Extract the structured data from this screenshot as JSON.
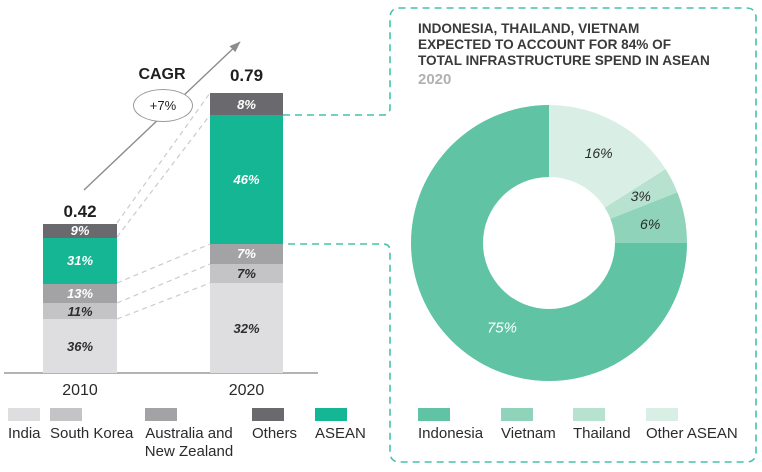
{
  "colors": {
    "india": "#dedee0",
    "south_korea": "#c4c4c6",
    "australia_nz": "#a3a3a6",
    "others": "#6a6a6e",
    "asean": "#14b694",
    "indonesia": "#5fc3a4",
    "vietnam": "#8fd3ba",
    "thailand": "#b7e2d0",
    "other_asean": "#d9efe5",
    "callout_border": "#45c4a8",
    "connector_gray": "#cbcbcb",
    "arrow_gray": "#8c8c8c",
    "axis_gray": "#9a9a9a"
  },
  "panel": {
    "title_lines": [
      "INDONESIA, THAILAND, VIETNAM",
      "EXPECTED TO ACCOUNT FOR 84% OF",
      "TOTAL INFRASTRUCTURE SPEND IN ASEAN"
    ],
    "subtitle": "2020"
  },
  "chart_data": [
    {
      "type": "bar",
      "subtype": "stacked-percent",
      "categories": [
        "2010",
        "2020"
      ],
      "totals": [
        0.42,
        0.79
      ],
      "annotations": {
        "cagr_label": "CAGR",
        "cagr_value": "+7%"
      },
      "series": [
        {
          "name": "India",
          "color": "#dedee0",
          "label_color": "#2e2e30",
          "values": [
            36,
            32
          ]
        },
        {
          "name": "South Korea",
          "color": "#c4c4c6",
          "label_color": "#2e2e30",
          "values": [
            11,
            7
          ]
        },
        {
          "name": "Australia and New Zealand",
          "color": "#a3a3a6",
          "label_color": "#ffffff",
          "values": [
            13,
            7
          ]
        },
        {
          "name": "ASEAN",
          "color": "#14b694",
          "label_color": "#ffffff",
          "values": [
            31,
            46
          ]
        },
        {
          "name": "Others",
          "color": "#6a6a6e",
          "label_color": "#ffffff",
          "values": [
            9,
            8
          ]
        }
      ],
      "stack_order": "bottom-to-top",
      "legend_order": [
        "India",
        "South Korea",
        "Australia and New Zealand",
        "Others",
        "ASEAN"
      ],
      "legend_position": "bottom",
      "grid": false
    },
    {
      "type": "pie",
      "subtype": "donut",
      "title": "INDONESIA, THAILAND, VIETNAM EXPECTED TO ACCOUNT FOR 84% OF TOTAL INFRASTRUCTURE SPEND IN ASEAN",
      "subtitle": "2020",
      "direction": "counter-clockwise-from-top",
      "slices": [
        {
          "label": "Indonesia",
          "value": 75,
          "color": "#5fc3a4",
          "label_color": "#ffffff"
        },
        {
          "label": "Vietnam",
          "value": 6,
          "color": "#8fd3ba",
          "label_color": "#2b2b2d"
        },
        {
          "label": "Thailand",
          "value": 3,
          "color": "#b7e2d0",
          "label_color": "#2b2b2d"
        },
        {
          "label": "Other ASEAN",
          "value": 16,
          "color": "#d9efe5",
          "label_color": "#2b2b2d"
        }
      ],
      "legend_position": "bottom"
    }
  ]
}
